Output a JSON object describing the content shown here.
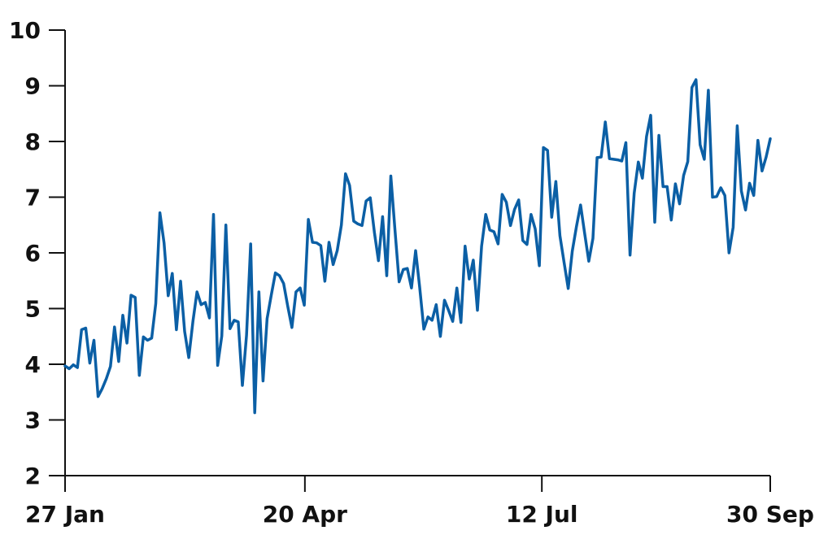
{
  "chart_data": {
    "type": "line",
    "title": "",
    "xlabel": "",
    "ylabel": "",
    "ylim": [
      2,
      10
    ],
    "xlim": [
      "2020-01-27",
      "2020-09-30"
    ],
    "yticks": [
      2,
      3,
      4,
      5,
      6,
      7,
      8,
      9,
      10
    ],
    "xticks": [
      {
        "date": "2020-01-27",
        "label": "27 Jan"
      },
      {
        "date": "2020-04-20",
        "label": "20 Apr"
      },
      {
        "date": "2020-07-12",
        "label": "12 Jul"
      },
      {
        "date": "2020-09-30",
        "label": "30 Sep"
      }
    ],
    "grid": false,
    "legend": "none",
    "color": "#0b5fa5",
    "series": [
      {
        "x_start": "2020-01-27",
        "x_end": "2020-09-30",
        "values": [
          3.97,
          3.92,
          3.99,
          3.94,
          4.62,
          4.65,
          4.02,
          4.43,
          3.42,
          3.56,
          3.74,
          3.96,
          4.67,
          4.05,
          4.88,
          4.38,
          5.24,
          5.2,
          3.8,
          4.49,
          4.43,
          4.47,
          5.09,
          6.72,
          6.18,
          5.23,
          5.63,
          4.62,
          5.49,
          4.59,
          4.12,
          4.77,
          5.3,
          5.07,
          5.11,
          4.83,
          6.69,
          3.98,
          4.51,
          6.5,
          4.64,
          4.79,
          4.76,
          3.62,
          4.52,
          6.16,
          3.13,
          5.3,
          3.7,
          4.82,
          5.24,
          5.64,
          5.59,
          5.45,
          5.04,
          4.66,
          5.3,
          5.37,
          5.06,
          6.6,
          6.19,
          6.18,
          6.13,
          5.49,
          6.19,
          5.79,
          6.04,
          6.5,
          7.42,
          7.21,
          6.57,
          6.52,
          6.49,
          6.93,
          6.99,
          6.37,
          5.86,
          6.65,
          5.59,
          7.38,
          6.41,
          5.48,
          5.7,
          5.72,
          5.37,
          6.04,
          5.38,
          4.63,
          4.85,
          4.79,
          5.07,
          4.5,
          5.15,
          4.97,
          4.77,
          5.37,
          4.75,
          6.12,
          5.53,
          5.87,
          4.97,
          6.12,
          6.69,
          6.41,
          6.38,
          6.16,
          7.05,
          6.91,
          6.49,
          6.78,
          6.95,
          6.22,
          6.15,
          6.69,
          6.43,
          5.77,
          7.89,
          7.84,
          6.64,
          7.28,
          6.31,
          5.83,
          5.36,
          6.03,
          6.47,
          6.86,
          6.35,
          5.85,
          6.26,
          7.71,
          7.72,
          8.35,
          7.69,
          7.68,
          7.67,
          7.65,
          7.98,
          5.96,
          7.07,
          7.63,
          7.34,
          8.09,
          8.47,
          6.55,
          8.11,
          7.19,
          7.19,
          6.59,
          7.24,
          6.88,
          7.39,
          7.64,
          8.97,
          9.11,
          7.94,
          7.68,
          8.92,
          7.0,
          7.01,
          7.17,
          7.03,
          6.0,
          6.46,
          8.28,
          7.11,
          6.77,
          7.25,
          7.03,
          8.02,
          7.47,
          7.72,
          8.05
        ]
      }
    ]
  }
}
